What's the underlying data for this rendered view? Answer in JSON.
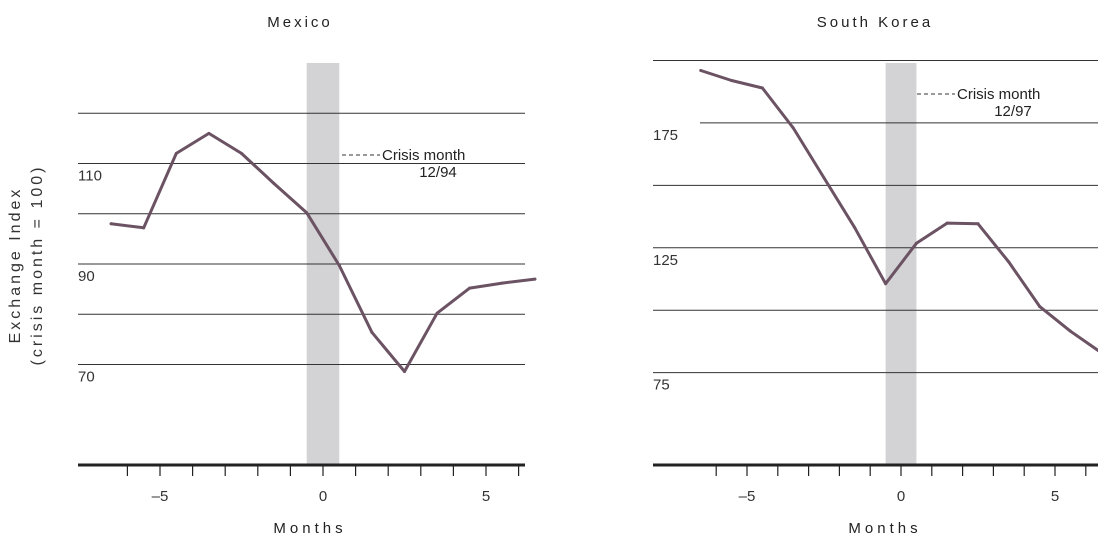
{
  "y_axis_label_line1": "Exchange Index",
  "y_axis_label_line2": "(crisis month = 100)",
  "chart_data": [
    {
      "type": "line",
      "title": "Mexico",
      "xlabel": "Months",
      "xlim": [
        -8,
        6.5
      ],
      "ylim": [
        50,
        130
      ],
      "y_ticks": [
        70,
        90,
        110
      ],
      "y_gridlines": [
        70,
        80,
        90,
        100,
        110,
        120
      ],
      "x_ticks": [
        -5,
        0,
        5
      ],
      "x_minor_ticks": [
        -6,
        -5,
        -4,
        -3,
        -2,
        -1,
        0,
        1,
        2,
        3,
        4,
        5,
        6
      ],
      "crisis_band": [
        -0.5,
        0.5
      ],
      "annotation": {
        "line1": "Crisis month",
        "line2": "12/94"
      },
      "series": [
        {
          "x": [
            -6.5,
            -5.5,
            -4.5,
            -3.5,
            -2.5,
            -1.5,
            -0.5,
            0.5,
            1.5,
            2.5,
            3.5,
            4.5,
            5.5,
            6.5
          ],
          "values": [
            98,
            97.2,
            112,
            116,
            112,
            106,
            100.2,
            89.7,
            76.4,
            68.6,
            80.2,
            85.2,
            86.2,
            87
          ]
        }
      ]
    },
    {
      "type": "line",
      "title": "South Korea",
      "xlabel": "Months",
      "xlim": [
        -8,
        6.2
      ],
      "ylim": [
        38,
        199
      ],
      "y_ticks": [
        75,
        125,
        175
      ],
      "y_gridlines": [
        75,
        100,
        125,
        150,
        175,
        200
      ],
      "x_ticks": [
        -5,
        0,
        5
      ],
      "x_minor_ticks": [
        -6,
        -5,
        -4,
        -3,
        -2,
        -1,
        0,
        1,
        2,
        3,
        4,
        5,
        6
      ],
      "crisis_band": [
        -0.5,
        0.5
      ],
      "annotation": {
        "line1": "Crisis month",
        "line2": "12/97"
      },
      "series": [
        {
          "x": [
            -6.5,
            -5.5,
            -4.5,
            -3.5,
            -2.5,
            -1.5,
            -0.5,
            0.5,
            1.5,
            2.5,
            3.5,
            4.5,
            5.5,
            6.5
          ],
          "values": [
            196,
            192,
            189,
            173,
            153,
            133,
            110.6,
            126.8,
            134.9,
            134.6,
            119.3,
            101.5,
            91.6,
            83
          ]
        }
      ]
    }
  ]
}
